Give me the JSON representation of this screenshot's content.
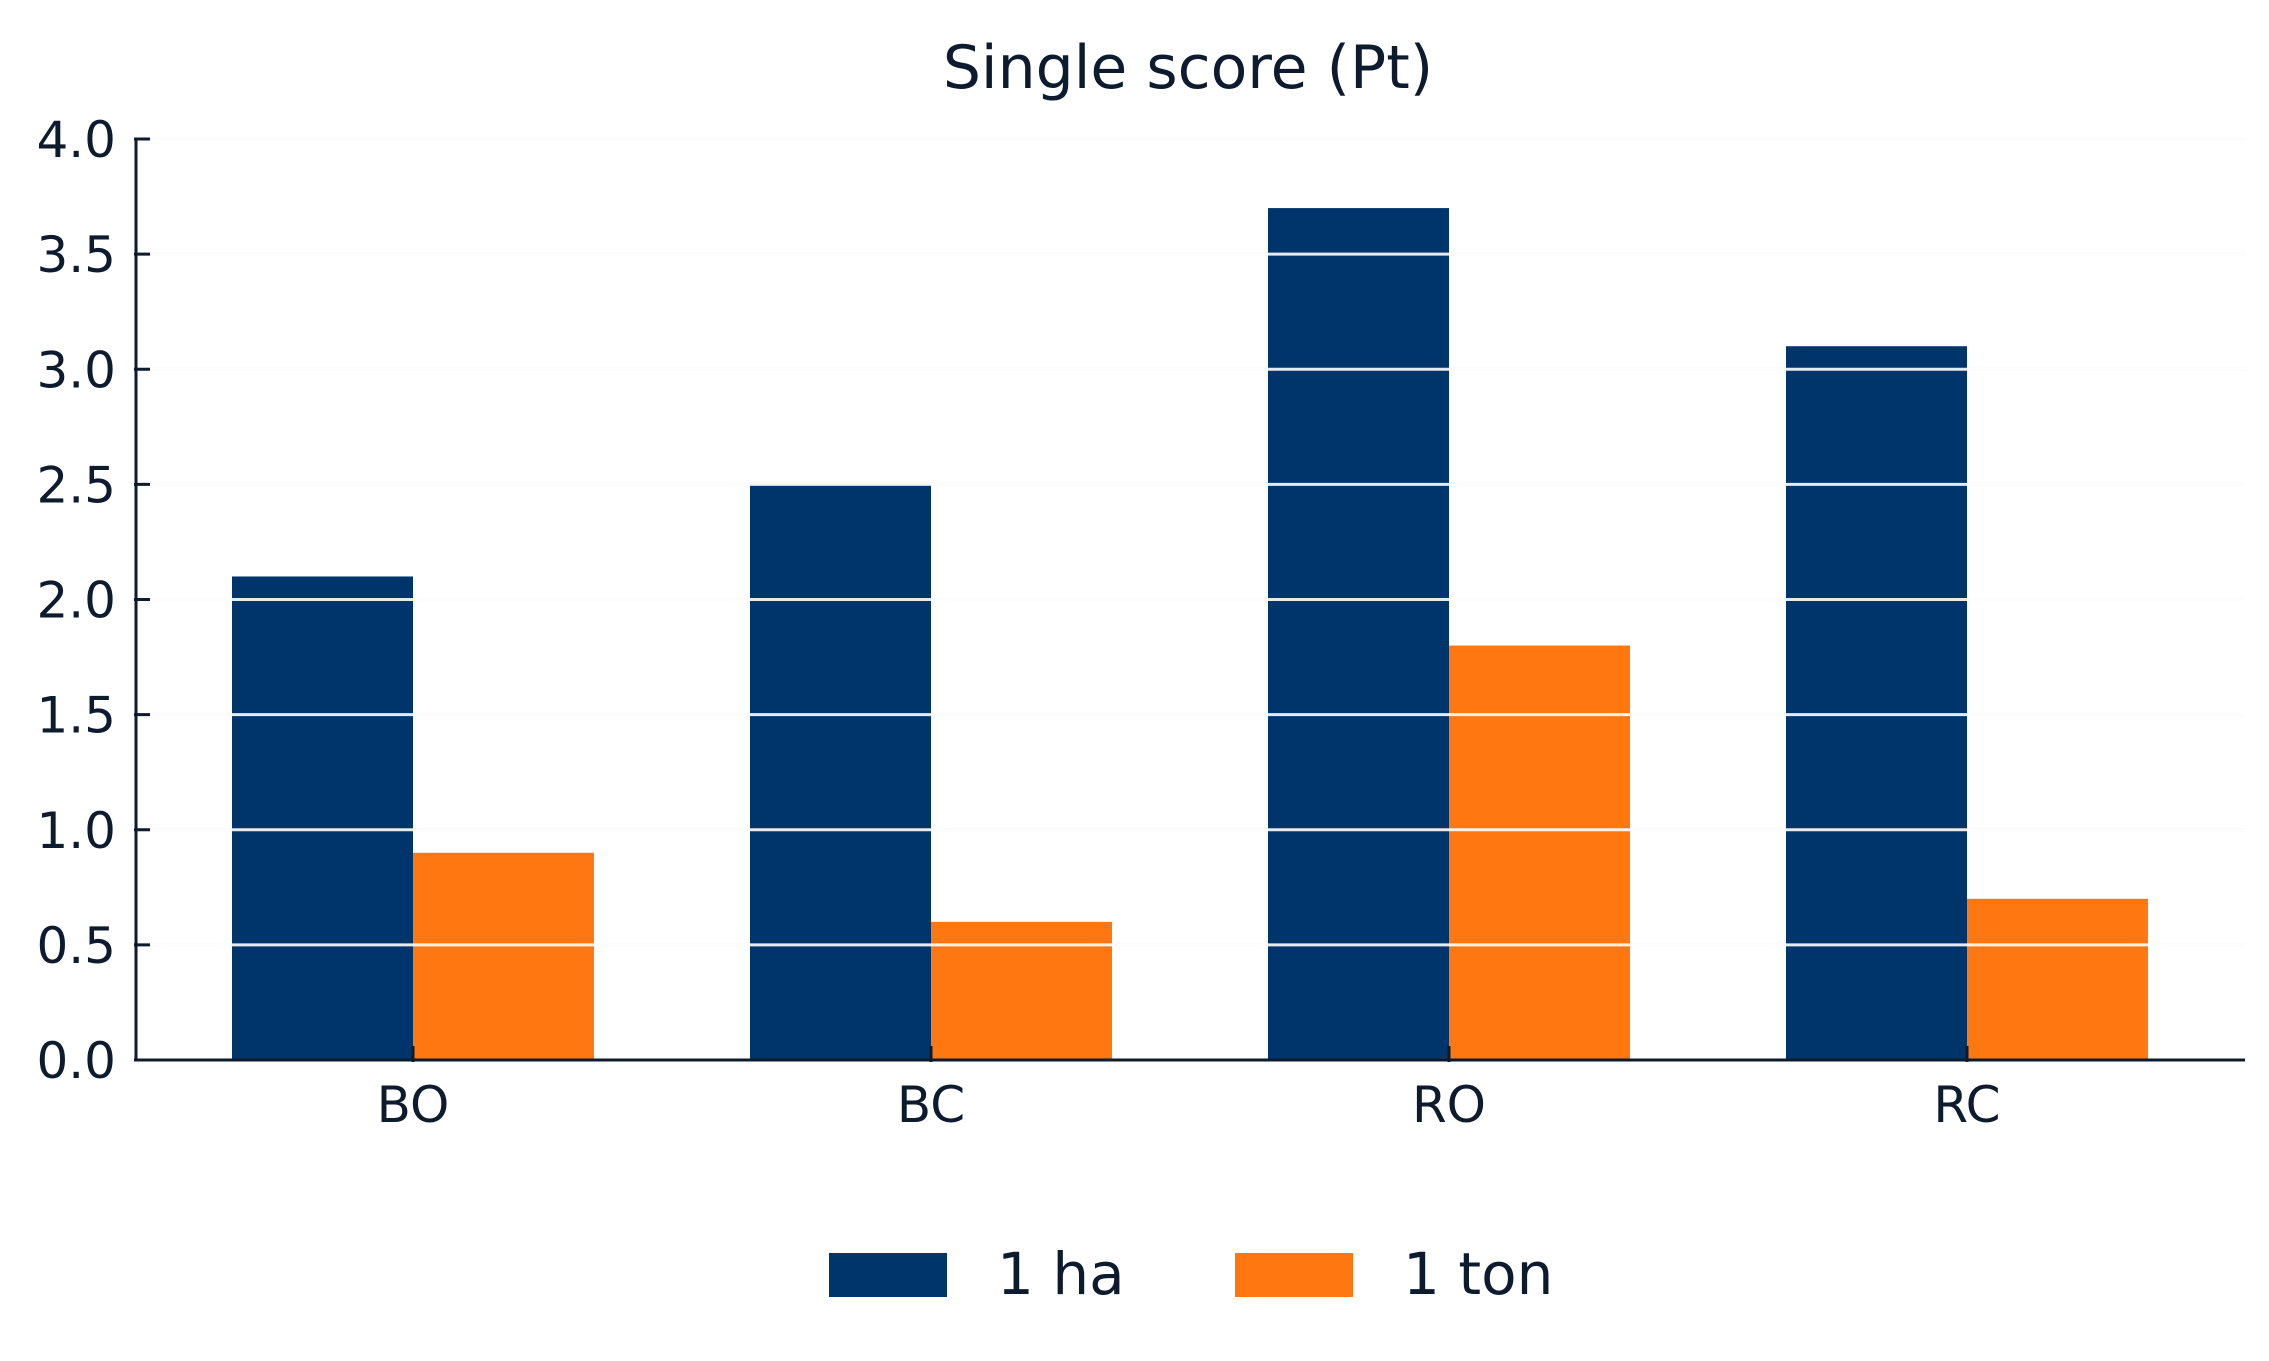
{
  "chart_data": {
    "type": "bar",
    "title": "Single score (Pt)",
    "xlabel": "",
    "ylabel": "",
    "categories": [
      "BO",
      "BC",
      "RO",
      "RC"
    ],
    "series": [
      {
        "name": "1 ha",
        "color": "#00356b",
        "values": [
          2.1,
          2.5,
          3.7,
          3.1
        ]
      },
      {
        "name": "1 ton",
        "color": "#ff7710",
        "values": [
          0.9,
          0.6,
          1.8,
          0.7
        ]
      }
    ],
    "ylim": [
      0,
      4.0
    ],
    "yticks": [
      "0.0",
      "0.5",
      "1.0",
      "1.5",
      "2.0",
      "2.5",
      "3.0",
      "3.5",
      "4.0"
    ],
    "grid": true,
    "legend_position": "bottom-center"
  }
}
